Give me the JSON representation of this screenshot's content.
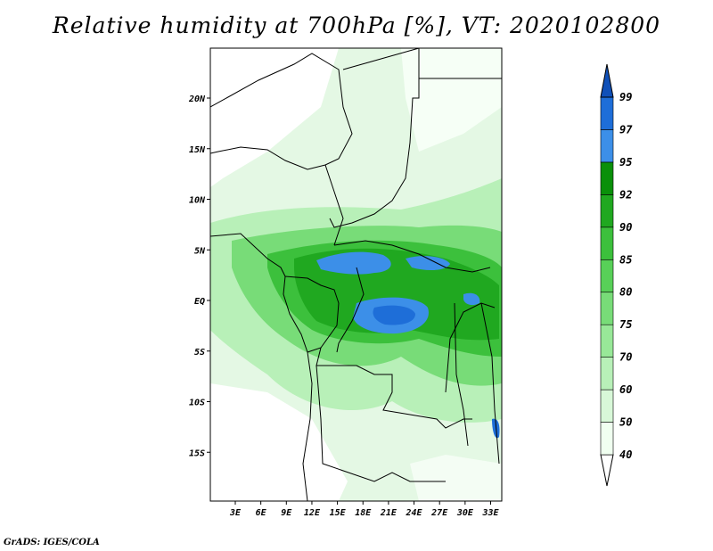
{
  "title": "Relative humidity at 700hPa [%], VT: 2020102800",
  "credit": "GrADS: IGES/COLA",
  "map": {
    "lat_ticks": [
      {
        "label": "20N",
        "lat": 20
      },
      {
        "label": "15N",
        "lat": 15
      },
      {
        "label": "10N",
        "lat": 10
      },
      {
        "label": "5N",
        "lat": 5
      },
      {
        "label": "EQ",
        "lat": 0
      },
      {
        "label": "5S",
        "lat": -5
      },
      {
        "label": "10S",
        "lat": -10
      },
      {
        "label": "15S",
        "lat": -15
      }
    ],
    "lon_ticks": [
      {
        "label": "3E",
        "lon": 3
      },
      {
        "label": "6E",
        "lon": 6
      },
      {
        "label": "9E",
        "lon": 9
      },
      {
        "label": "12E",
        "lon": 12
      },
      {
        "label": "15E",
        "lon": 15
      },
      {
        "label": "18E",
        "lon": 18
      },
      {
        "label": "21E",
        "lon": 21
      },
      {
        "label": "24E",
        "lon": 24
      },
      {
        "label": "27E",
        "lon": 27
      },
      {
        "label": "30E",
        "lon": 30
      },
      {
        "label": "33E",
        "lon": 33
      }
    ]
  },
  "colorbar": {
    "levels": [
      {
        "label": "40",
        "color": "#f0fff0"
      },
      {
        "label": "50",
        "color": "#d8f8d8"
      },
      {
        "label": "60",
        "color": "#b8f0b8"
      },
      {
        "label": "70",
        "color": "#98e898"
      },
      {
        "label": "75",
        "color": "#78dc78"
      },
      {
        "label": "80",
        "color": "#58d058"
      },
      {
        "label": "85",
        "color": "#3cc03c"
      },
      {
        "label": "90",
        "color": "#20a820"
      },
      {
        "label": "92",
        "color": "#0a900a"
      },
      {
        "label": "95",
        "color": "#3c8fe8"
      },
      {
        "label": "97",
        "color": "#1e6ed8"
      },
      {
        "label": "99",
        "color": "#1050b8"
      }
    ],
    "low_color": "#ffffff",
    "high_color": "#1050b8"
  }
}
